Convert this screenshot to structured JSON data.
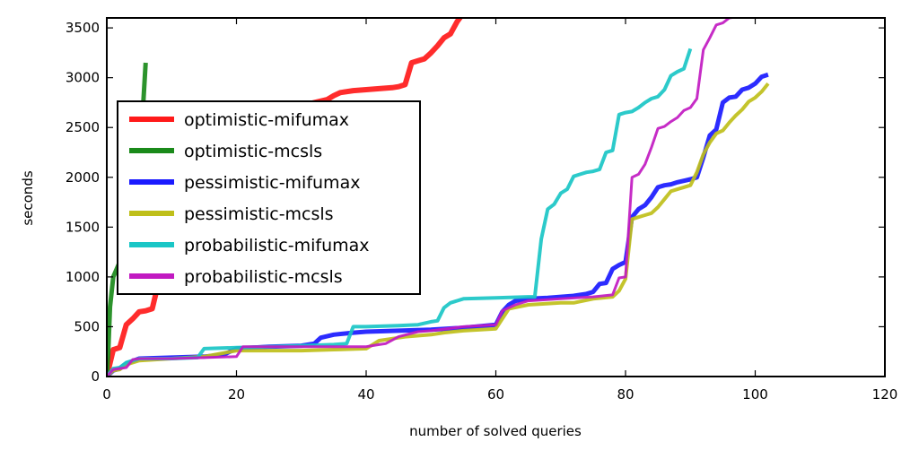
{
  "chart_data": {
    "type": "line",
    "xlabel": "number of solved queries",
    "ylabel": "seconds",
    "xlim": [
      0,
      120
    ],
    "ylim": [
      0,
      3600
    ],
    "xticks": [
      0,
      20,
      40,
      60,
      80,
      100,
      120
    ],
    "yticks": [
      0,
      500,
      1000,
      1500,
      2000,
      2500,
      3000,
      3500
    ],
    "grid": false,
    "legend_position": "center-left",
    "series": [
      {
        "name": "optimistic-mifumax",
        "color": "#ff1a1a",
        "x": [
          0,
          1,
          2,
          3,
          4,
          5,
          6,
          7,
          8,
          9,
          10,
          12,
          14,
          16,
          18,
          20,
          22,
          24,
          26,
          28,
          30,
          32,
          34,
          35,
          36,
          38,
          40,
          42,
          44,
          45,
          46,
          47,
          48,
          49,
          50,
          51,
          52,
          53,
          54,
          55
        ],
        "y": [
          0,
          270,
          290,
          520,
          580,
          650,
          660,
          680,
          950,
          1250,
          1450,
          1700,
          1900,
          2050,
          2200,
          2350,
          2450,
          2550,
          2620,
          2680,
          2720,
          2750,
          2780,
          2820,
          2850,
          2870,
          2880,
          2890,
          2900,
          2910,
          2930,
          3150,
          3170,
          3190,
          3250,
          3320,
          3400,
          3440,
          3560,
          3650
        ]
      },
      {
        "name": "optimistic-mcsls",
        "color": "#1a8a1a",
        "x": [
          0,
          0.2,
          0.5,
          1,
          2,
          3,
          4,
          5,
          5.5,
          6
        ],
        "y": [
          0,
          200,
          700,
          1000,
          1150,
          1350,
          1600,
          2000,
          2600,
          3150
        ]
      },
      {
        "name": "pessimistic-mifumax",
        "color": "#1a1aff",
        "x": [
          0,
          1,
          2,
          3,
          5,
          10,
          15,
          18,
          20,
          25,
          30,
          32,
          33,
          35,
          38,
          40,
          45,
          50,
          55,
          60,
          61,
          62,
          63,
          65,
          68,
          70,
          72,
          74,
          75,
          76,
          77,
          78,
          79,
          80,
          81,
          82,
          83,
          84,
          85,
          86,
          87,
          88,
          90,
          91,
          92,
          93,
          94,
          95,
          96,
          97,
          98,
          99,
          100,
          101,
          102
        ],
        "y": [
          0,
          60,
          80,
          130,
          180,
          190,
          200,
          220,
          280,
          300,
          310,
          330,
          390,
          420,
          440,
          450,
          460,
          470,
          490,
          520,
          650,
          720,
          760,
          780,
          790,
          800,
          810,
          830,
          850,
          930,
          940,
          1080,
          1120,
          1150,
          1600,
          1680,
          1720,
          1800,
          1900,
          1920,
          1930,
          1950,
          1980,
          2000,
          2200,
          2420,
          2480,
          2750,
          2800,
          2810,
          2880,
          2900,
          2940,
          3010,
          3030
        ]
      },
      {
        "name": "pessimistic-mcsls",
        "color": "#bfbf1a",
        "x": [
          0,
          1,
          2,
          3,
          5,
          10,
          15,
          20,
          25,
          30,
          35,
          40,
          42,
          44,
          46,
          50,
          52,
          55,
          60,
          62,
          65,
          70,
          72,
          75,
          78,
          79,
          80,
          81,
          82,
          83,
          84,
          85,
          86,
          87,
          88,
          89,
          90,
          91,
          92,
          93,
          94,
          95,
          96,
          97,
          98,
          99,
          100,
          101,
          102
        ],
        "y": [
          0,
          60,
          70,
          120,
          160,
          180,
          200,
          260,
          260,
          260,
          270,
          280,
          360,
          380,
          400,
          420,
          440,
          460,
          480,
          680,
          720,
          740,
          740,
          780,
          800,
          860,
          980,
          1580,
          1600,
          1620,
          1640,
          1700,
          1780,
          1860,
          1880,
          1900,
          1920,
          2050,
          2230,
          2350,
          2440,
          2470,
          2550,
          2620,
          2680,
          2760,
          2800,
          2860,
          2940
        ]
      },
      {
        "name": "probabilistic-mifumax",
        "color": "#1ac6c6",
        "x": [
          0,
          1,
          2,
          3,
          5,
          10,
          14,
          15,
          20,
          25,
          30,
          35,
          37,
          38,
          40,
          45,
          48,
          50,
          51,
          52,
          53,
          55,
          60,
          65,
          66,
          67,
          68,
          69,
          70,
          71,
          72,
          73,
          74,
          75,
          76,
          77,
          78,
          79,
          80,
          81,
          82,
          83,
          84,
          85,
          86,
          87,
          88,
          89,
          90
        ],
        "y": [
          0,
          80,
          90,
          140,
          180,
          180,
          190,
          280,
          290,
          300,
          310,
          320,
          330,
          500,
          500,
          510,
          520,
          550,
          560,
          690,
          740,
          780,
          790,
          800,
          800,
          1380,
          1680,
          1730,
          1840,
          1880,
          2010,
          2030,
          2050,
          2060,
          2080,
          2250,
          2270,
          2630,
          2650,
          2660,
          2700,
          2750,
          2790,
          2810,
          2880,
          3020,
          3060,
          3090,
          3290
        ]
      },
      {
        "name": "probabilistic-mcsls",
        "color": "#c11ac1",
        "x": [
          0,
          1,
          2,
          3,
          4,
          5,
          10,
          15,
          20,
          21,
          25,
          30,
          35,
          40,
          42,
          43,
          45,
          48,
          50,
          55,
          60,
          61,
          63,
          65,
          70,
          75,
          78,
          79,
          80,
          81,
          82,
          83,
          84,
          85,
          86,
          87,
          88,
          89,
          90,
          91,
          92,
          93,
          94,
          95,
          96,
          97
        ],
        "y": [
          0,
          70,
          80,
          90,
          170,
          180,
          180,
          190,
          200,
          300,
          300,
          300,
          300,
          300,
          320,
          330,
          400,
          450,
          460,
          500,
          520,
          660,
          720,
          760,
          780,
          800,
          820,
          990,
          1000,
          2000,
          2030,
          2130,
          2300,
          2490,
          2510,
          2560,
          2600,
          2670,
          2700,
          2790,
          3280,
          3400,
          3530,
          3550,
          3600,
          3610
        ]
      }
    ]
  }
}
